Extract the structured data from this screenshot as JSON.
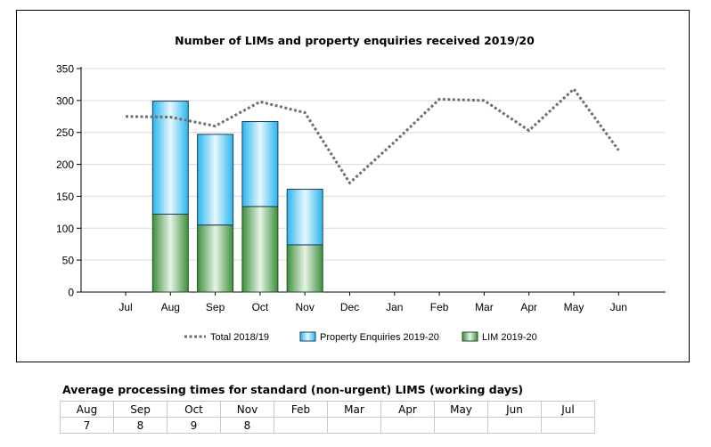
{
  "chart_data": {
    "type": "bar",
    "title": "Number of LIMs and property enquiries received 2019/20",
    "categories": [
      "Jul",
      "Aug",
      "Sep",
      "Oct",
      "Nov",
      "Dec",
      "Jan",
      "Feb",
      "Mar",
      "Apr",
      "May",
      "Jun"
    ],
    "ylim": [
      0,
      350
    ],
    "yticks": [
      0,
      50,
      100,
      150,
      200,
      250,
      300,
      350
    ],
    "grid": true,
    "legend_position": "bottom",
    "series": [
      {
        "name": "Total 2018/19",
        "kind": "line",
        "style": "dotted",
        "color": "#707070",
        "values": [
          275,
          274,
          260,
          298,
          281,
          171,
          235,
          302,
          300,
          253,
          318,
          222
        ]
      },
      {
        "name": "Property Enquiries 2019-20",
        "kind": "stacked-bar",
        "color": "#4fc8f2",
        "values": [
          null,
          177,
          142,
          133,
          87,
          null,
          null,
          null,
          null,
          null,
          null,
          null
        ]
      },
      {
        "name": "LIM 2019-20",
        "kind": "stacked-bar",
        "color": "#6ab56a",
        "values": [
          null,
          122,
          105,
          134,
          74,
          null,
          null,
          null,
          null,
          null,
          null,
          null
        ]
      }
    ]
  },
  "table": {
    "title": "Average processing times for standard (non-urgent) LIMS (working days)",
    "months": [
      "Aug",
      "Sep",
      "Oct",
      "Nov",
      "Feb",
      "Mar",
      "Apr",
      "May",
      "Jun",
      "Jul"
    ],
    "values": [
      "7",
      "8",
      "9",
      "8",
      "",
      "",
      "",
      "",
      "",
      ""
    ]
  }
}
